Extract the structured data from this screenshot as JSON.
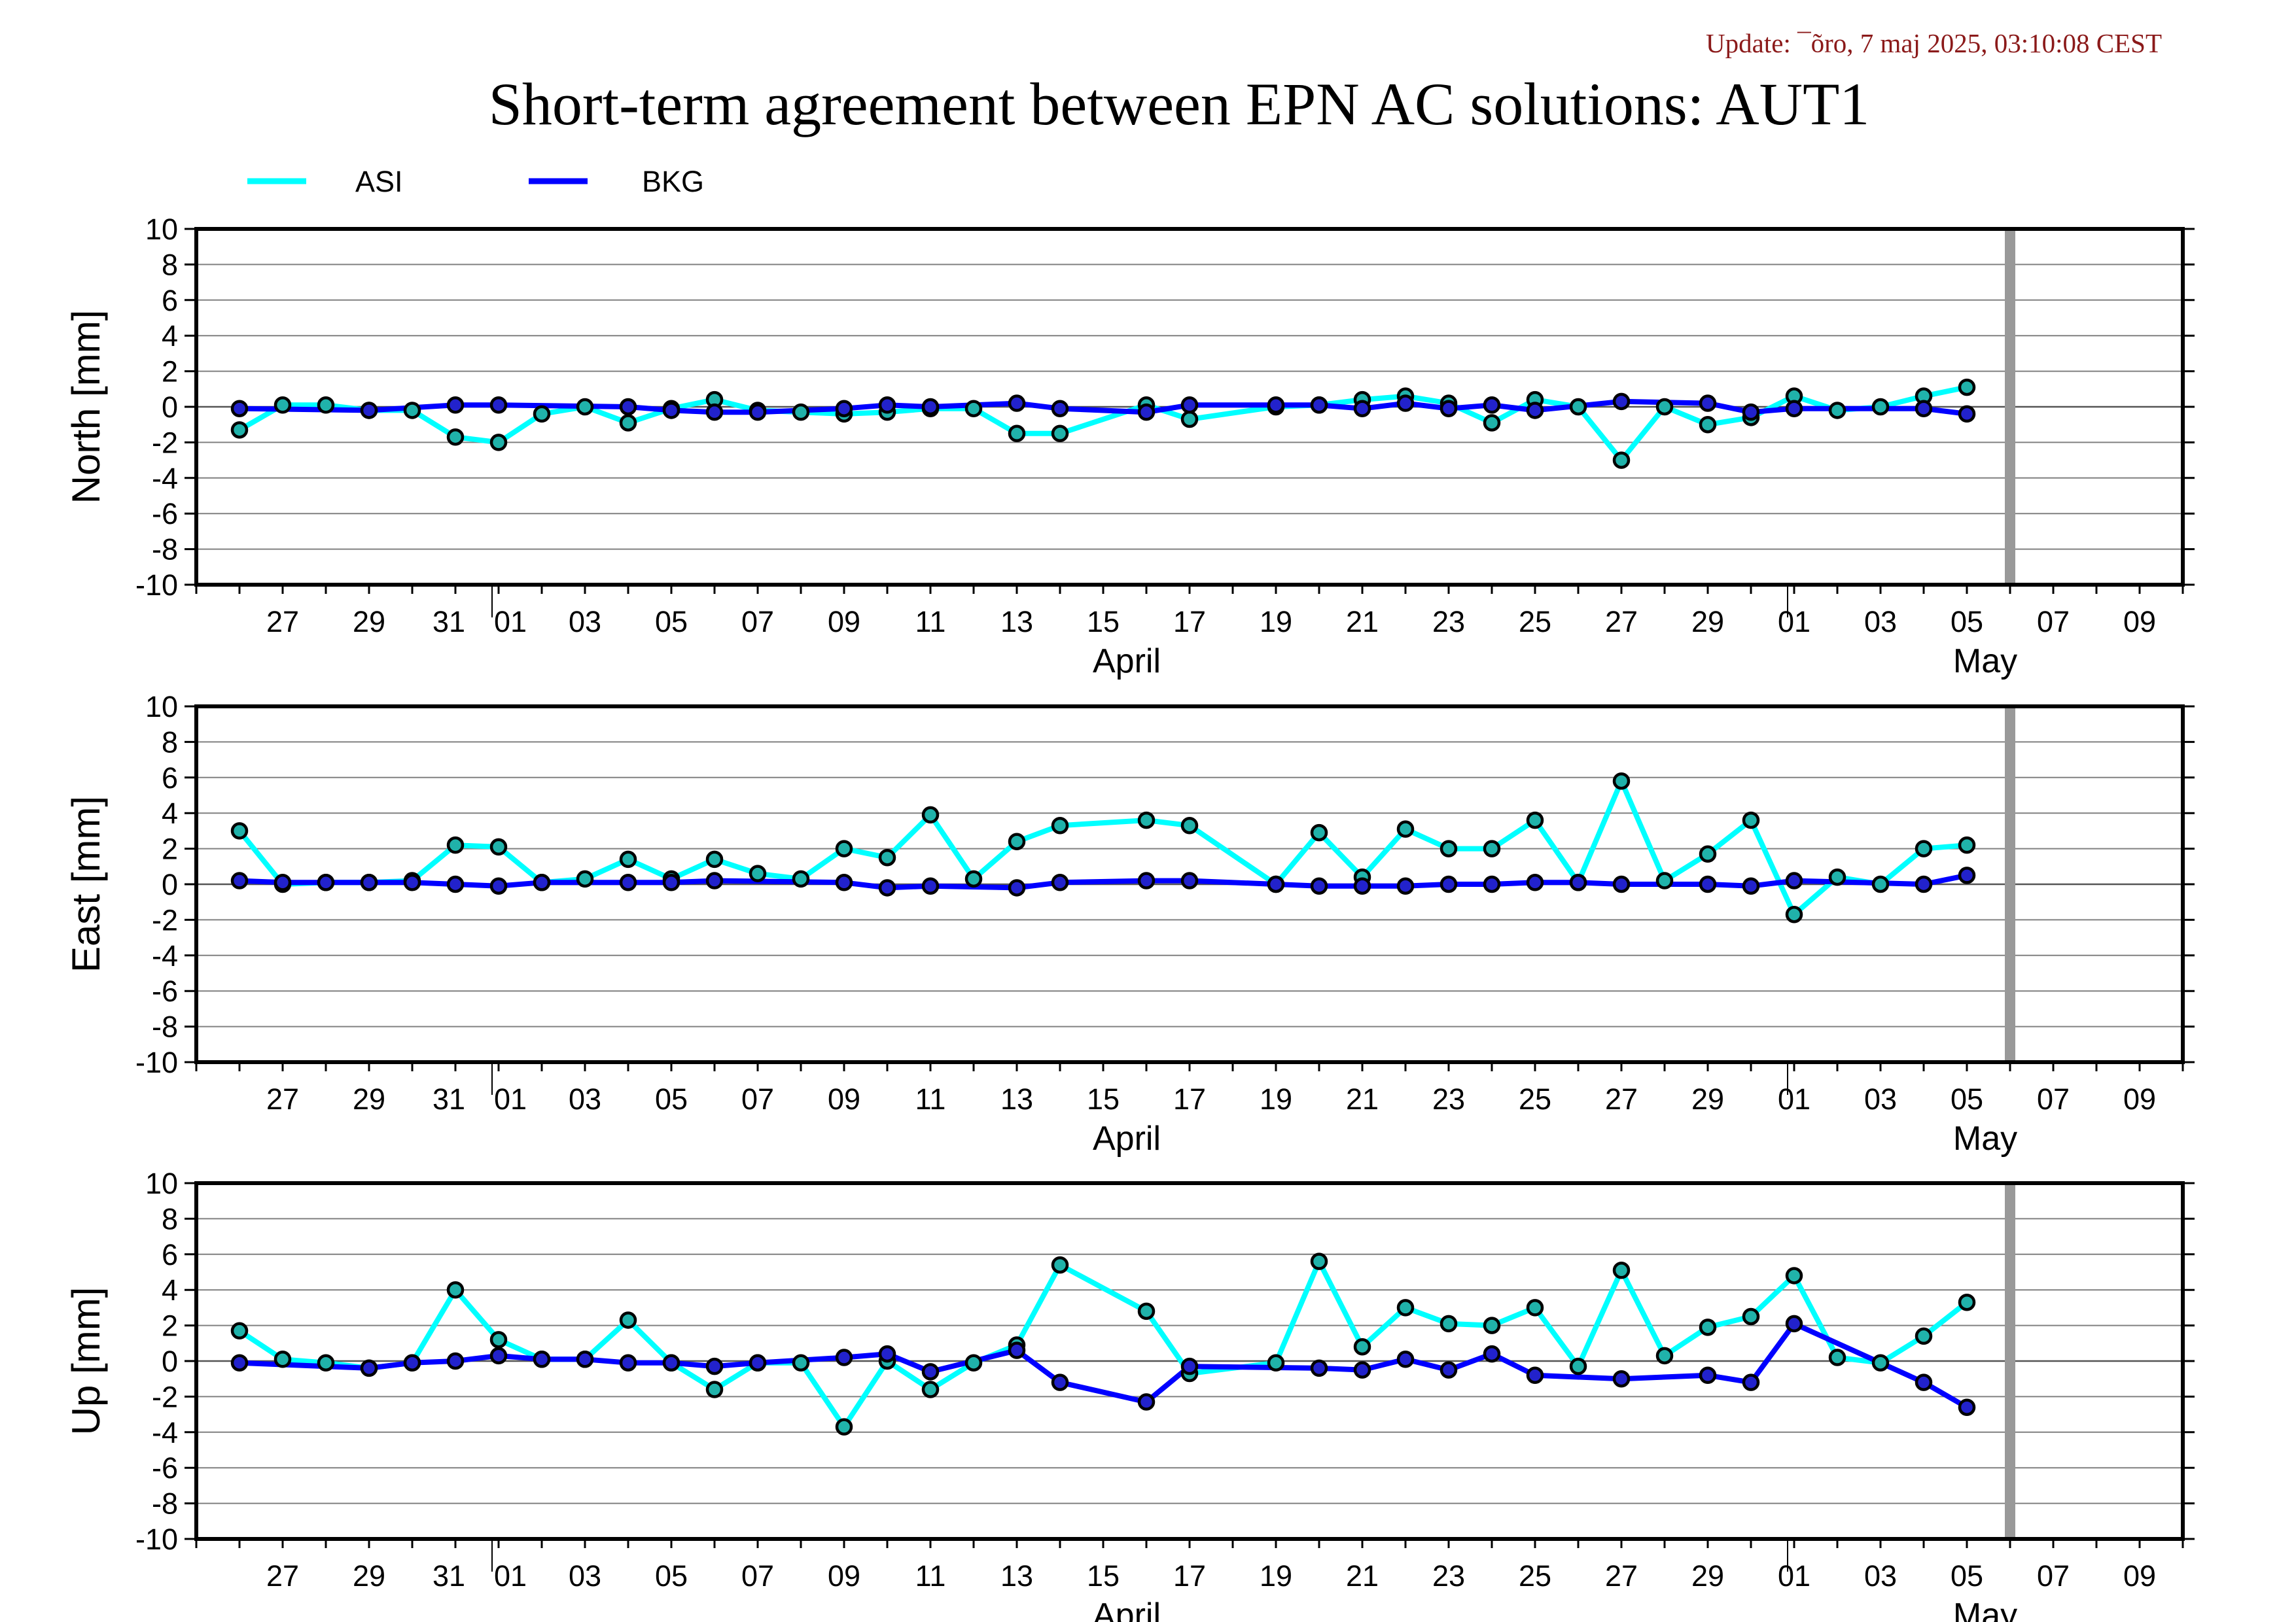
{
  "header": {
    "update": "Update: ¯õro, 7 maj 2025, 03:10:08 CEST",
    "title": "Short-term agreement between EPN AC solutions: AUT1"
  },
  "legend": [
    {
      "name": "ASI",
      "color": "#00ffff"
    },
    {
      "name": "BKG",
      "color": "#0000ff"
    }
  ],
  "colors": {
    "asi": "#00ffff",
    "bkg": "#0000ff",
    "asi_marker": "#20b2aa",
    "bkg_marker": "#2222cc",
    "current_day": "#999999"
  },
  "current_day_marker": "2025-05-06",
  "chart_data": [
    {
      "type": "line",
      "ylabel": "North [mm]",
      "ylim": [
        -10,
        10
      ],
      "yticks": [
        10,
        8,
        6,
        4,
        2,
        0,
        -2,
        -4,
        -6,
        -8,
        -10
      ],
      "grid": true,
      "xlim": [
        "2025-03-25",
        "2025-05-10"
      ],
      "xtick_labels": [
        "27",
        "29",
        "31",
        "01",
        "03",
        "05",
        "07",
        "09",
        "11",
        "13",
        "15",
        "17",
        "19",
        "21",
        "23",
        "25",
        "27",
        "29",
        "01",
        "03",
        "05",
        "07",
        "09"
      ],
      "month_labels": [
        "April",
        "May"
      ],
      "series": [
        {
          "name": "ASI",
          "x": [
            "2025-03-26",
            "2025-03-27",
            "2025-03-28",
            "2025-03-29",
            "2025-03-30",
            "2025-03-31",
            "2025-04-01",
            "2025-04-02",
            "2025-04-03",
            "2025-04-04",
            "2025-04-05",
            "2025-04-06",
            "2025-04-07",
            "2025-04-08",
            "2025-04-09",
            "2025-04-10",
            "2025-04-11",
            "2025-04-12",
            "2025-04-13",
            "2025-04-14",
            "2025-04-16",
            "2025-04-17",
            "2025-04-19",
            "2025-04-20",
            "2025-04-21",
            "2025-04-22",
            "2025-04-23",
            "2025-04-24",
            "2025-04-25",
            "2025-04-26",
            "2025-04-27",
            "2025-04-28",
            "2025-04-29",
            "2025-04-30",
            "2025-05-01",
            "2025-05-02",
            "2025-05-03",
            "2025-05-04",
            "2025-05-05"
          ],
          "values": [
            -1.3,
            0.1,
            0.1,
            -0.2,
            -0.2,
            -1.7,
            -2.0,
            -0.4,
            0.0,
            -0.9,
            -0.1,
            0.4,
            -0.2,
            -0.3,
            -0.4,
            -0.3,
            -0.1,
            -0.1,
            -1.5,
            -1.5,
            0.1,
            -0.7,
            0.0,
            0.1,
            0.4,
            0.6,
            0.2,
            -0.9,
            0.4,
            0.0,
            -3.0,
            0.0,
            -1.0,
            -0.6,
            0.6,
            -0.2,
            0.0,
            0.6,
            1.1
          ]
        },
        {
          "name": "BKG",
          "x": [
            "2025-03-26",
            "2025-03-29",
            "2025-03-31",
            "2025-04-01",
            "2025-04-04",
            "2025-04-05",
            "2025-04-06",
            "2025-04-07",
            "2025-04-09",
            "2025-04-10",
            "2025-04-11",
            "2025-04-13",
            "2025-04-14",
            "2025-04-16",
            "2025-04-17",
            "2025-04-19",
            "2025-04-20",
            "2025-04-21",
            "2025-04-22",
            "2025-04-23",
            "2025-04-24",
            "2025-04-25",
            "2025-04-27",
            "2025-04-29",
            "2025-04-30",
            "2025-05-01",
            "2025-05-04",
            "2025-05-05"
          ],
          "values": [
            -0.1,
            -0.2,
            0.1,
            0.1,
            0.0,
            -0.2,
            -0.3,
            -0.3,
            -0.1,
            0.1,
            0.0,
            0.2,
            -0.1,
            -0.3,
            0.1,
            0.1,
            0.1,
            -0.1,
            0.2,
            -0.1,
            0.1,
            -0.2,
            0.3,
            0.2,
            -0.3,
            -0.1,
            -0.1,
            -0.4
          ]
        }
      ]
    },
    {
      "type": "line",
      "ylabel": "East [mm]",
      "ylim": [
        -10,
        10
      ],
      "yticks": [
        10,
        8,
        6,
        4,
        2,
        0,
        -2,
        -4,
        -6,
        -8,
        -10
      ],
      "grid": true,
      "xlim": [
        "2025-03-25",
        "2025-05-10"
      ],
      "xtick_labels": [
        "27",
        "29",
        "31",
        "01",
        "03",
        "05",
        "07",
        "09",
        "11",
        "13",
        "15",
        "17",
        "19",
        "21",
        "23",
        "25",
        "27",
        "29",
        "01",
        "03",
        "05",
        "07",
        "09"
      ],
      "month_labels": [
        "April",
        "May"
      ],
      "series": [
        {
          "name": "ASI",
          "x": [
            "2025-03-26",
            "2025-03-27",
            "2025-03-28",
            "2025-03-29",
            "2025-03-30",
            "2025-03-31",
            "2025-04-01",
            "2025-04-02",
            "2025-04-03",
            "2025-04-04",
            "2025-04-05",
            "2025-04-06",
            "2025-04-07",
            "2025-04-08",
            "2025-04-09",
            "2025-04-10",
            "2025-04-11",
            "2025-04-12",
            "2025-04-13",
            "2025-04-14",
            "2025-04-16",
            "2025-04-17",
            "2025-04-19",
            "2025-04-20",
            "2025-04-21",
            "2025-04-22",
            "2025-04-23",
            "2025-04-24",
            "2025-04-25",
            "2025-04-26",
            "2025-04-27",
            "2025-04-28",
            "2025-04-29",
            "2025-04-30",
            "2025-05-01",
            "2025-05-02",
            "2025-05-03",
            "2025-05-04",
            "2025-05-05"
          ],
          "values": [
            3.0,
            0.0,
            0.1,
            0.1,
            0.2,
            2.2,
            2.1,
            0.1,
            0.3,
            1.4,
            0.3,
            1.4,
            0.6,
            0.3,
            2.0,
            1.5,
            3.9,
            0.3,
            2.4,
            3.3,
            3.6,
            3.3,
            0.0,
            2.9,
            0.4,
            3.1,
            2.0,
            2.0,
            3.6,
            0.1,
            5.8,
            0.2,
            1.7,
            3.6,
            -1.7,
            0.4,
            0.0,
            2.0,
            2.2
          ]
        },
        {
          "name": "BKG",
          "x": [
            "2025-03-26",
            "2025-03-27",
            "2025-03-28",
            "2025-03-29",
            "2025-03-30",
            "2025-03-31",
            "2025-04-01",
            "2025-04-02",
            "2025-04-04",
            "2025-04-05",
            "2025-04-06",
            "2025-04-09",
            "2025-04-10",
            "2025-04-11",
            "2025-04-13",
            "2025-04-14",
            "2025-04-16",
            "2025-04-17",
            "2025-04-19",
            "2025-04-20",
            "2025-04-21",
            "2025-04-22",
            "2025-04-23",
            "2025-04-24",
            "2025-04-25",
            "2025-04-26",
            "2025-04-27",
            "2025-04-29",
            "2025-04-30",
            "2025-05-01",
            "2025-05-04",
            "2025-05-05"
          ],
          "values": [
            0.2,
            0.1,
            0.1,
            0.1,
            0.1,
            0.0,
            -0.1,
            0.1,
            0.1,
            0.1,
            0.2,
            0.1,
            -0.2,
            -0.1,
            -0.2,
            0.1,
            0.2,
            0.2,
            0.0,
            -0.1,
            -0.1,
            -0.1,
            0.0,
            0.0,
            0.1,
            0.1,
            0.0,
            0.0,
            -0.1,
            0.2,
            0.0,
            0.5
          ]
        }
      ]
    },
    {
      "type": "line",
      "ylabel": "Up [mm]",
      "ylim": [
        -10,
        10
      ],
      "yticks": [
        10,
        8,
        6,
        4,
        2,
        0,
        -2,
        -4,
        -6,
        -8,
        -10
      ],
      "grid": true,
      "xlim": [
        "2025-03-25",
        "2025-05-10"
      ],
      "xtick_labels": [
        "27",
        "29",
        "31",
        "01",
        "03",
        "05",
        "07",
        "09",
        "11",
        "13",
        "15",
        "17",
        "19",
        "21",
        "23",
        "25",
        "27",
        "29",
        "01",
        "03",
        "05",
        "07",
        "09"
      ],
      "month_labels": [
        "April",
        "May"
      ],
      "series": [
        {
          "name": "ASI",
          "x": [
            "2025-03-26",
            "2025-03-27",
            "2025-03-28",
            "2025-03-29",
            "2025-03-30",
            "2025-03-31",
            "2025-04-01",
            "2025-04-02",
            "2025-04-03",
            "2025-04-04",
            "2025-04-05",
            "2025-04-06",
            "2025-04-07",
            "2025-04-08",
            "2025-04-09",
            "2025-04-10",
            "2025-04-11",
            "2025-04-12",
            "2025-04-13",
            "2025-04-14",
            "2025-04-16",
            "2025-04-17",
            "2025-04-19",
            "2025-04-20",
            "2025-04-21",
            "2025-04-22",
            "2025-04-23",
            "2025-04-24",
            "2025-04-25",
            "2025-04-26",
            "2025-04-27",
            "2025-04-28",
            "2025-04-29",
            "2025-04-30",
            "2025-05-01",
            "2025-05-02",
            "2025-05-03",
            "2025-05-04",
            "2025-05-05"
          ],
          "values": [
            1.7,
            0.1,
            -0.1,
            -0.4,
            -0.1,
            4.0,
            1.2,
            0.1,
            0.1,
            2.3,
            -0.1,
            -1.6,
            -0.1,
            -0.1,
            -3.7,
            0.0,
            -1.6,
            -0.1,
            0.9,
            5.4,
            2.8,
            -0.7,
            -0.1,
            5.6,
            0.8,
            3.0,
            2.1,
            2.0,
            3.0,
            -0.3,
            5.1,
            0.3,
            1.9,
            2.5,
            4.8,
            0.2,
            -0.1,
            1.4,
            3.3
          ]
        },
        {
          "name": "BKG",
          "x": [
            "2025-03-26",
            "2025-03-29",
            "2025-03-30",
            "2025-03-31",
            "2025-04-01",
            "2025-04-02",
            "2025-04-03",
            "2025-04-04",
            "2025-04-05",
            "2025-04-06",
            "2025-04-07",
            "2025-04-09",
            "2025-04-10",
            "2025-04-11",
            "2025-04-13",
            "2025-04-14",
            "2025-04-16",
            "2025-04-17",
            "2025-04-20",
            "2025-04-21",
            "2025-04-22",
            "2025-04-23",
            "2025-04-24",
            "2025-04-25",
            "2025-04-27",
            "2025-04-29",
            "2025-04-30",
            "2025-05-01",
            "2025-05-04",
            "2025-05-05"
          ],
          "values": [
            -0.1,
            -0.4,
            -0.1,
            0.0,
            0.3,
            0.1,
            0.1,
            -0.1,
            -0.1,
            -0.3,
            -0.1,
            0.2,
            0.4,
            -0.6,
            0.6,
            -1.2,
            -2.3,
            -0.3,
            -0.4,
            -0.5,
            0.1,
            -0.5,
            0.4,
            -0.8,
            -1.0,
            -0.8,
            -1.2,
            2.1,
            -1.2,
            -2.6
          ]
        }
      ]
    }
  ]
}
